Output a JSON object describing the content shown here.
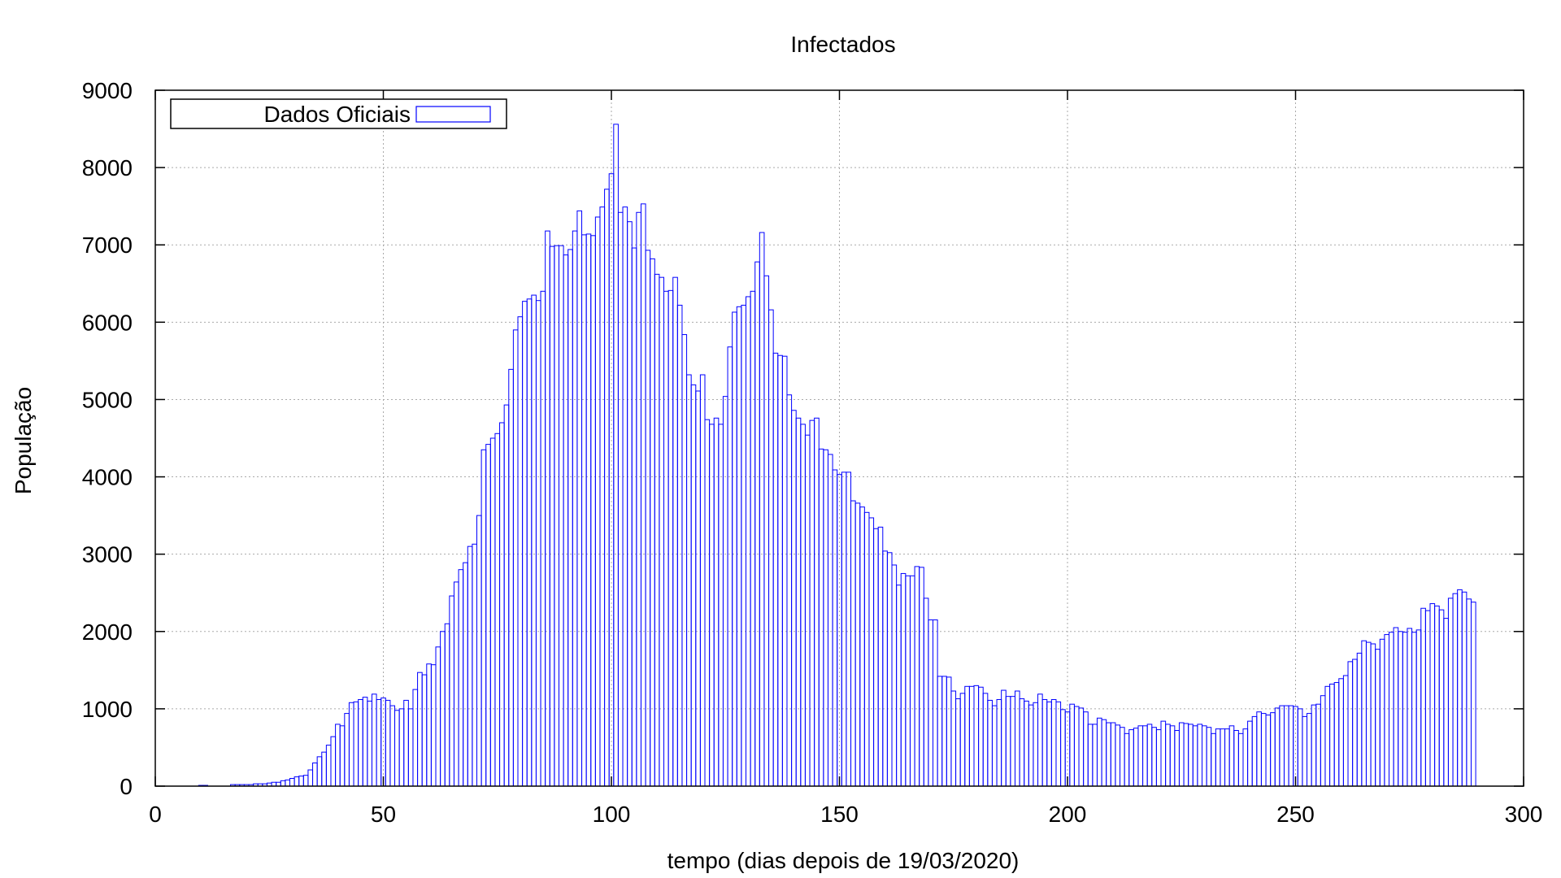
{
  "chart_data": {
    "type": "bar",
    "title": "Infectados",
    "xlabel": "tempo (dias depois de 19/03/2020)",
    "ylabel": "População",
    "xlim": [
      0,
      300
    ],
    "ylim": [
      0,
      9000
    ],
    "xticks": [
      0,
      50,
      100,
      150,
      200,
      250,
      300
    ],
    "yticks": [
      0,
      1000,
      2000,
      3000,
      4000,
      5000,
      6000,
      7000,
      8000,
      9000
    ],
    "grid": true,
    "legend": {
      "position": "top-left"
    },
    "colors": {
      "series": "#0000ff",
      "grid": "#aaaaaa",
      "axis": "#000000"
    },
    "series": [
      {
        "name": "Dados Oficiais",
        "x_start": 1,
        "values": [
          0,
          0,
          0,
          0,
          0,
          0,
          0,
          0,
          0,
          10,
          10,
          0,
          0,
          0,
          0,
          0,
          20,
          20,
          20,
          20,
          20,
          30,
          30,
          30,
          40,
          50,
          50,
          70,
          80,
          100,
          120,
          130,
          140,
          210,
          300,
          380,
          440,
          530,
          640,
          800,
          780,
          940,
          1080,
          1090,
          1120,
          1150,
          1100,
          1190,
          1120,
          1140,
          1110,
          1040,
          980,
          1000,
          1110,
          1000,
          1250,
          1470,
          1440,
          1580,
          1570,
          1800,
          2000,
          2100,
          2460,
          2640,
          2800,
          2890,
          3100,
          3130,
          3500,
          4350,
          4420,
          4500,
          4560,
          4700,
          4930,
          5390,
          5900,
          6070,
          6270,
          6300,
          6350,
          6280,
          6400,
          7180,
          6980,
          6990,
          6990,
          6870,
          6940,
          7180,
          7440,
          7130,
          7140,
          7120,
          7360,
          7490,
          7720,
          7920,
          8560,
          7420,
          7490,
          7300,
          6960,
          7420,
          7530,
          6930,
          6820,
          6620,
          6580,
          6400,
          6410,
          6580,
          6220,
          5840,
          5320,
          5190,
          5110,
          5320,
          4740,
          4680,
          4760,
          4680,
          5040,
          5680,
          6130,
          6200,
          6220,
          6330,
          6400,
          6780,
          7160,
          6600,
          6160,
          5600,
          5570,
          5560,
          5060,
          4860,
          4760,
          4680,
          4540,
          4730,
          4760,
          4360,
          4350,
          4290,
          4090,
          4030,
          4060,
          4060,
          3690,
          3660,
          3610,
          3540,
          3470,
          3330,
          3350,
          3040,
          3020,
          2860,
          2600,
          2750,
          2720,
          2720,
          2840,
          2830,
          2430,
          2150,
          2150,
          1420,
          1420,
          1410,
          1230,
          1130,
          1200,
          1290,
          1290,
          1300,
          1280,
          1200,
          1110,
          1040,
          1120,
          1240,
          1160,
          1160,
          1230,
          1130,
          1100,
          1050,
          1080,
          1190,
          1120,
          1090,
          1120,
          1090,
          990,
          960,
          1060,
          1030,
          1010,
          960,
          800,
          800,
          880,
          860,
          820,
          820,
          790,
          760,
          680,
          730,
          750,
          780,
          780,
          800,
          760,
          730,
          840,
          800,
          780,
          720,
          820,
          810,
          800,
          780,
          800,
          780,
          760,
          680,
          740,
          740,
          740,
          780,
          720,
          680,
          740,
          840,
          900,
          960,
          940,
          920,
          950,
          1010,
          1040,
          1040,
          1040,
          1030,
          1000,
          900,
          940,
          1050,
          1060,
          1170,
          1290,
          1320,
          1340,
          1390,
          1430,
          1610,
          1640,
          1720,
          1880,
          1860,
          1840,
          1770,
          1900,
          1960,
          1990,
          2050,
          2000,
          1990,
          2040,
          1990,
          2020,
          2300,
          2270,
          2360,
          2330,
          2280,
          2170,
          2430,
          2490,
          2540,
          2510,
          2420,
          2380
        ]
      }
    ]
  }
}
